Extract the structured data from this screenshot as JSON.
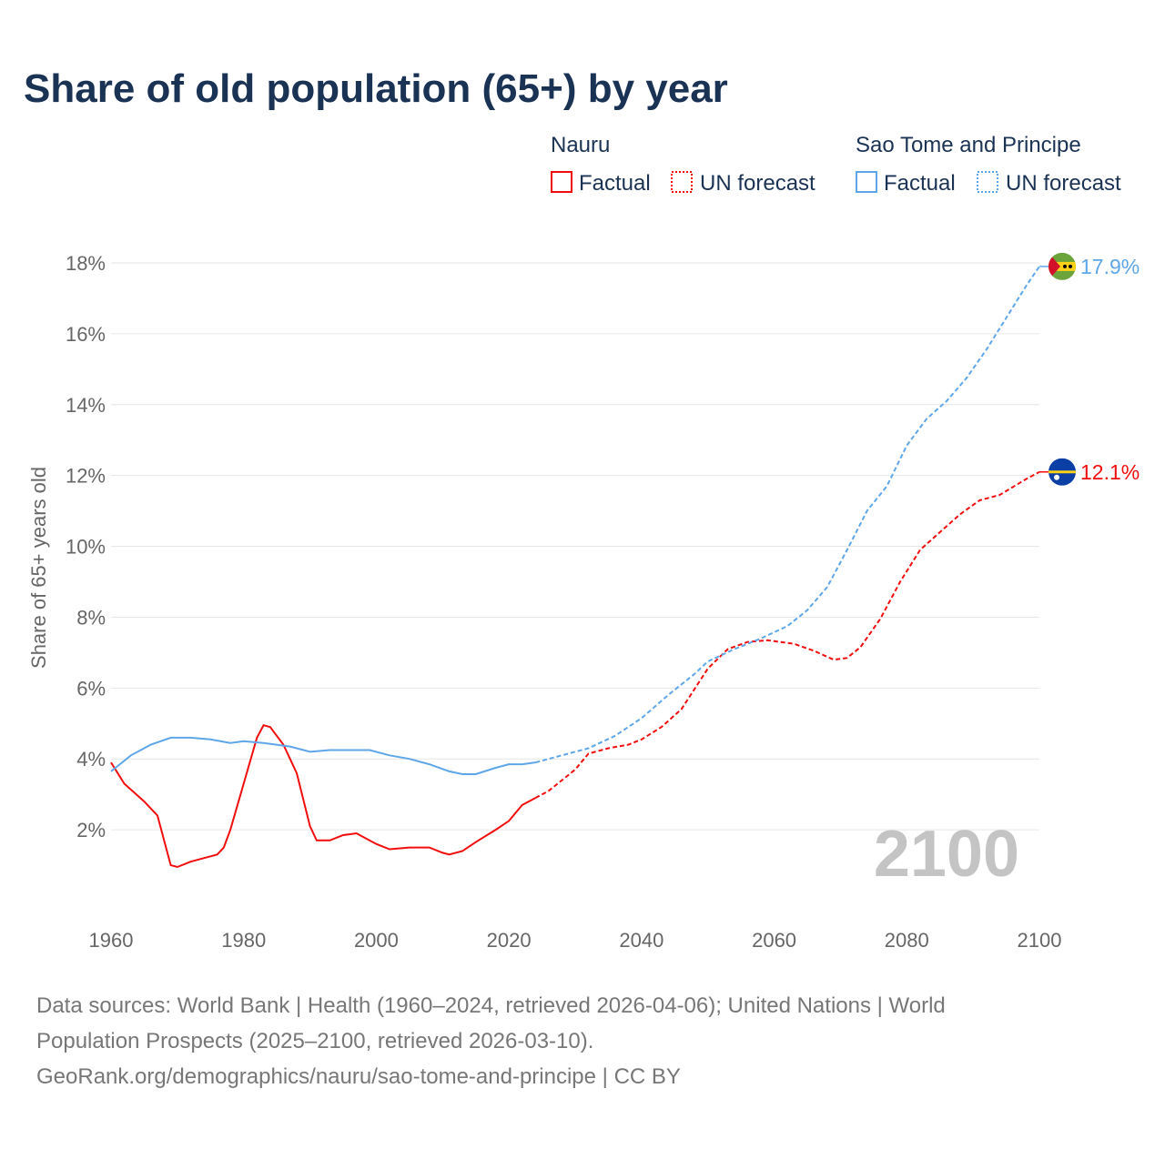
{
  "chart_data": {
    "type": "line",
    "title": "Share of old population (65+) by year",
    "ylabel": "Share of 65+ years old",
    "xlabel": "",
    "xlim": [
      1960,
      2100
    ],
    "ylim": [
      0,
      18
    ],
    "x_ticks": [
      "1960",
      "1980",
      "2000",
      "2020",
      "2040",
      "2060",
      "2080",
      "2100"
    ],
    "y_ticks": [
      {
        "v": 2,
        "label": "2%"
      },
      {
        "v": 4,
        "label": "4%"
      },
      {
        "v": 6,
        "label": "6%"
      },
      {
        "v": 8,
        "label": "8%"
      },
      {
        "v": 10,
        "label": "10%"
      },
      {
        "v": 12,
        "label": "12%"
      },
      {
        "v": 14,
        "label": "14%"
      },
      {
        "v": 16,
        "label": "16%"
      },
      {
        "v": 18,
        "label": "18%"
      }
    ],
    "grid": true,
    "year_watermark": "2100",
    "legend": {
      "placement": "top-right",
      "groups": [
        {
          "country": "Nauru",
          "factual": "Factual",
          "forecast": "UN forecast",
          "color": "#f20d0d"
        },
        {
          "country": "Sao Tome and Principe",
          "factual": "Factual",
          "forecast": "UN forecast",
          "color": "#5ea6e8"
        }
      ]
    },
    "series": [
      {
        "name": "Nauru",
        "color": "#f20d0d",
        "end_label": "12.1%",
        "flag": "nauru",
        "factual": [
          [
            1960,
            3.9
          ],
          [
            1962,
            3.3
          ],
          [
            1965,
            2.8
          ],
          [
            1967,
            2.4
          ],
          [
            1969,
            1.0
          ],
          [
            1970,
            0.95
          ],
          [
            1972,
            1.1
          ],
          [
            1975,
            1.25
          ],
          [
            1976,
            1.3
          ],
          [
            1977,
            1.5
          ],
          [
            1978,
            2.0
          ],
          [
            1980,
            3.3
          ],
          [
            1982,
            4.6
          ],
          [
            1983,
            4.95
          ],
          [
            1984,
            4.9
          ],
          [
            1986,
            4.4
          ],
          [
            1988,
            3.6
          ],
          [
            1990,
            2.1
          ],
          [
            1991,
            1.7
          ],
          [
            1993,
            1.7
          ],
          [
            1995,
            1.85
          ],
          [
            1997,
            1.9
          ],
          [
            2000,
            1.6
          ],
          [
            2002,
            1.45
          ],
          [
            2005,
            1.5
          ],
          [
            2008,
            1.5
          ],
          [
            2010,
            1.35
          ],
          [
            2011,
            1.3
          ],
          [
            2013,
            1.4
          ],
          [
            2015,
            1.65
          ],
          [
            2018,
            2.0
          ],
          [
            2020,
            2.25
          ],
          [
            2022,
            2.7
          ],
          [
            2024,
            2.9
          ]
        ],
        "forecast": [
          [
            2024,
            2.9
          ],
          [
            2026,
            3.1
          ],
          [
            2030,
            3.7
          ],
          [
            2032,
            4.15
          ],
          [
            2035,
            4.3
          ],
          [
            2038,
            4.4
          ],
          [
            2040,
            4.55
          ],
          [
            2043,
            4.9
          ],
          [
            2046,
            5.4
          ],
          [
            2050,
            6.55
          ],
          [
            2053,
            7.1
          ],
          [
            2056,
            7.3
          ],
          [
            2059,
            7.35
          ],
          [
            2063,
            7.25
          ],
          [
            2066,
            7.05
          ],
          [
            2069,
            6.8
          ],
          [
            2071,
            6.85
          ],
          [
            2073,
            7.15
          ],
          [
            2076,
            7.95
          ],
          [
            2079,
            9.0
          ],
          [
            2082,
            9.9
          ],
          [
            2085,
            10.4
          ],
          [
            2088,
            10.9
          ],
          [
            2091,
            11.3
          ],
          [
            2094,
            11.45
          ],
          [
            2098,
            11.9
          ],
          [
            2100,
            12.1
          ]
        ]
      },
      {
        "name": "Sao Tome and Principe",
        "color": "#5ea6e8",
        "end_label": "17.9%",
        "flag": "sao-tome",
        "factual": [
          [
            1960,
            3.65
          ],
          [
            1963,
            4.1
          ],
          [
            1966,
            4.4
          ],
          [
            1969,
            4.6
          ],
          [
            1972,
            4.6
          ],
          [
            1975,
            4.55
          ],
          [
            1978,
            4.45
          ],
          [
            1980,
            4.5
          ],
          [
            1983,
            4.45
          ],
          [
            1987,
            4.35
          ],
          [
            1990,
            4.2
          ],
          [
            1993,
            4.25
          ],
          [
            1996,
            4.25
          ],
          [
            1999,
            4.25
          ],
          [
            2002,
            4.1
          ],
          [
            2005,
            4.0
          ],
          [
            2008,
            3.85
          ],
          [
            2011,
            3.65
          ],
          [
            2013,
            3.57
          ],
          [
            2015,
            3.57
          ],
          [
            2018,
            3.75
          ],
          [
            2020,
            3.85
          ],
          [
            2022,
            3.85
          ],
          [
            2024,
            3.9
          ]
        ],
        "forecast": [
          [
            2024,
            3.9
          ],
          [
            2028,
            4.1
          ],
          [
            2032,
            4.3
          ],
          [
            2036,
            4.65
          ],
          [
            2040,
            5.15
          ],
          [
            2044,
            5.8
          ],
          [
            2048,
            6.4
          ],
          [
            2050,
            6.75
          ],
          [
            2054,
            7.1
          ],
          [
            2058,
            7.4
          ],
          [
            2062,
            7.75
          ],
          [
            2065,
            8.2
          ],
          [
            2068,
            8.85
          ],
          [
            2071,
            9.9
          ],
          [
            2074,
            11.0
          ],
          [
            2077,
            11.7
          ],
          [
            2080,
            12.85
          ],
          [
            2083,
            13.6
          ],
          [
            2086,
            14.1
          ],
          [
            2089,
            14.75
          ],
          [
            2092,
            15.55
          ],
          [
            2095,
            16.45
          ],
          [
            2098,
            17.35
          ],
          [
            2100,
            17.9
          ]
        ]
      }
    ]
  },
  "footer": {
    "line1": "Data sources: World Bank | Health (1960–2024, retrieved 2026-04-06); United Nations | World",
    "line2": "Population Prospects (2025–2100, retrieved 2026-03-10).",
    "line3": "GeoRank.org/demographics/nauru/sao-tome-and-principe | CC BY"
  }
}
